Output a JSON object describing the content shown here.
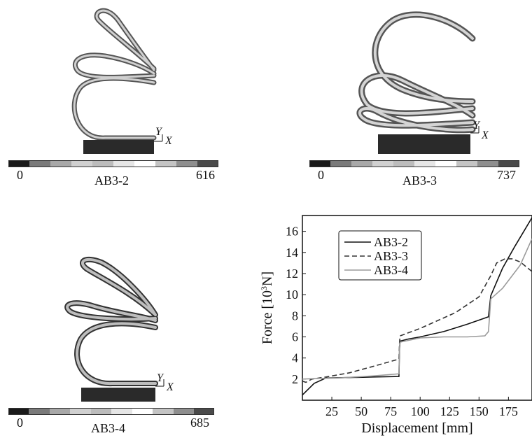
{
  "panels": [
    {
      "label": "AB3-2",
      "scale_min": "0",
      "scale_max": "616",
      "axis_y": "Y",
      "axis_x": "X"
    },
    {
      "label": "AB3-3",
      "scale_min": "0",
      "scale_max": "737",
      "axis_y": "Y",
      "axis_x": "X"
    },
    {
      "label": "AB3-4",
      "scale_min": "0",
      "scale_max": "685",
      "axis_y": "Y",
      "axis_x": "X"
    }
  ],
  "chart_data": {
    "type": "line",
    "xlabel": "Displacement [mm]",
    "ylabel_main": "Force [10",
    "ylabel_sup": "3",
    "ylabel_end": "N]",
    "xlim": [
      0,
      195
    ],
    "ylim": [
      0,
      17.5
    ],
    "xticks": [
      25,
      50,
      75,
      100,
      125,
      150,
      175
    ],
    "yticks": [
      2,
      4,
      6,
      8,
      10,
      12,
      14,
      16
    ],
    "legend_position": "top-left",
    "grid": false,
    "series": [
      {
        "name": "AB3-2",
        "style": "solid",
        "color": "#111111",
        "x": [
          0,
          10,
          20,
          40,
          60,
          82,
          82.5,
          83,
          90,
          100,
          120,
          140,
          158,
          160,
          170,
          180,
          195
        ],
        "y": [
          0.5,
          1.6,
          2.1,
          2.15,
          2.2,
          2.25,
          4.9,
          5.6,
          5.8,
          6.0,
          6.5,
          7.2,
          7.9,
          9.9,
          12.5,
          14.5,
          17.3
        ]
      },
      {
        "name": "AB3-3",
        "style": "dashed",
        "color": "#333333",
        "x": [
          0,
          3,
          8,
          20,
          40,
          60,
          82,
          82.5,
          83,
          100,
          130,
          150,
          160,
          165,
          172,
          178,
          185,
          195
        ],
        "y": [
          1.8,
          1.7,
          2.0,
          2.2,
          2.6,
          3.2,
          3.9,
          5.5,
          6.1,
          6.8,
          8.3,
          9.8,
          11.8,
          13.0,
          13.4,
          13.4,
          13.1,
          12.2
        ]
      },
      {
        "name": "AB3-4",
        "style": "solid",
        "color": "#9a9a9a",
        "x": [
          0,
          10,
          30,
          60,
          82,
          82.5,
          83,
          100,
          120,
          140,
          155,
          158,
          160,
          170,
          185,
          195
        ],
        "y": [
          2.0,
          2.05,
          2.1,
          2.3,
          2.5,
          5.2,
          5.5,
          5.9,
          6.0,
          6.0,
          6.1,
          6.5,
          9.6,
          10.6,
          12.8,
          15.3
        ]
      }
    ]
  }
}
